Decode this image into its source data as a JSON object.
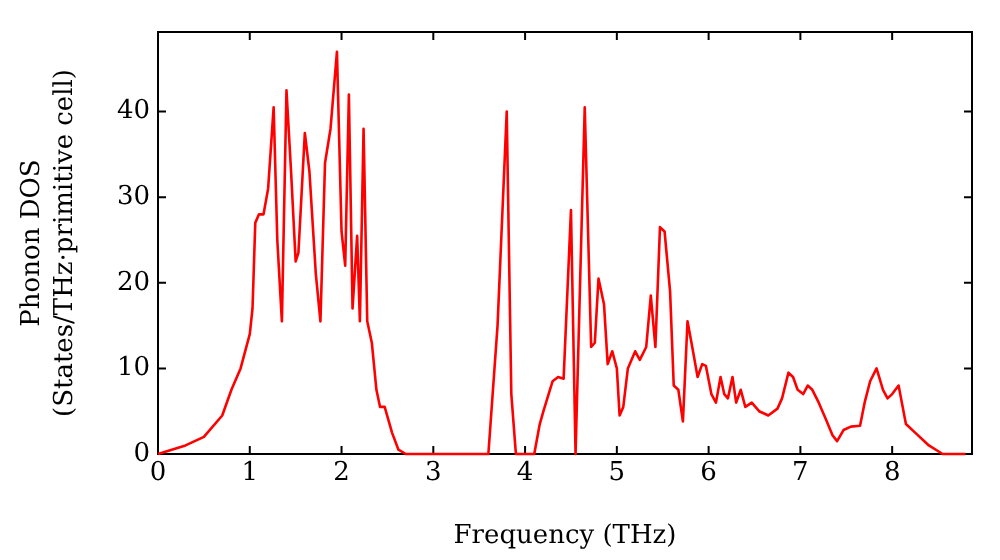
{
  "chart_data": {
    "type": "line",
    "xlabel": "Frequency (THz)",
    "ylabel": "Phonon DOS\n(States/THz·primitive cell)",
    "xlim": [
      0,
      8.87
    ],
    "ylim": [
      0,
      49.3
    ],
    "xticks": [
      0,
      1,
      2,
      3,
      4,
      5,
      6,
      7,
      8
    ],
    "yticks": [
      0,
      10,
      20,
      30,
      40
    ],
    "grid": false,
    "legend": false,
    "marker": "none",
    "line_style": "solid",
    "series": [
      {
        "color": "#ff0000",
        "x": [
          0,
          0.3,
          0.5,
          0.7,
          0.8,
          0.9,
          1.0,
          1.03,
          1.06,
          1.1,
          1.15,
          1.2,
          1.26,
          1.3,
          1.35,
          1.4,
          1.45,
          1.5,
          1.53,
          1.6,
          1.65,
          1.72,
          1.77,
          1.82,
          1.88,
          1.95,
          2.0,
          2.04,
          2.08,
          2.12,
          2.17,
          2.2,
          2.24,
          2.28,
          2.33,
          2.38,
          2.42,
          2.47,
          2.55,
          2.62,
          2.7,
          3.6,
          3.7,
          3.8,
          3.85,
          3.9,
          4.1,
          4.16,
          4.2,
          4.3,
          4.36,
          4.42,
          4.5,
          4.55,
          4.65,
          4.72,
          4.76,
          4.8,
          4.86,
          4.9,
          4.95,
          5.0,
          5.03,
          5.07,
          5.12,
          5.2,
          5.25,
          5.32,
          5.37,
          5.42,
          5.47,
          5.52,
          5.58,
          5.62,
          5.67,
          5.72,
          5.77,
          5.83,
          5.88,
          5.93,
          5.97,
          6.03,
          6.08,
          6.13,
          6.17,
          6.21,
          6.26,
          6.3,
          6.35,
          6.4,
          6.47,
          6.55,
          6.65,
          6.75,
          6.8,
          6.87,
          6.92,
          6.97,
          7.03,
          7.08,
          7.13,
          7.2,
          7.28,
          7.35,
          7.4,
          7.47,
          7.55,
          7.65,
          7.7,
          7.76,
          7.83,
          7.9,
          7.95,
          8.0,
          8.07,
          8.15,
          8.25,
          8.4,
          8.55,
          8.8
        ],
        "values": [
          0,
          1,
          2,
          4.5,
          7.5,
          10,
          14,
          17,
          27,
          28,
          28,
          31,
          40.5,
          25,
          15.5,
          42.5,
          33,
          22.5,
          23.5,
          37.5,
          33,
          21,
          15.5,
          34,
          38,
          47,
          26,
          22,
          42,
          17,
          25.5,
          15.5,
          38,
          15.5,
          13,
          7.5,
          5.5,
          5.5,
          2.5,
          0.5,
          0,
          0,
          15,
          40,
          7,
          0,
          0,
          3.5,
          5,
          8.5,
          9,
          8.8,
          28.5,
          0,
          40.5,
          12.5,
          13,
          20.5,
          17.5,
          10.5,
          12,
          10,
          4.5,
          5.5,
          10,
          12,
          11,
          12.5,
          18.5,
          12.5,
          26.5,
          26,
          19,
          8,
          7.5,
          3.8,
          15.5,
          12,
          9,
          10.5,
          10.3,
          7,
          6,
          9,
          7,
          6.5,
          9,
          6,
          7.5,
          5.5,
          6,
          5,
          4.5,
          5.3,
          6.5,
          9.5,
          9,
          7.5,
          7,
          8,
          7.5,
          6,
          4,
          2.2,
          1.5,
          2.8,
          3.2,
          3.3,
          6,
          8.5,
          10,
          7.5,
          6.5,
          7,
          8,
          3.5,
          2.5,
          1,
          0,
          0
        ]
      }
    ]
  }
}
